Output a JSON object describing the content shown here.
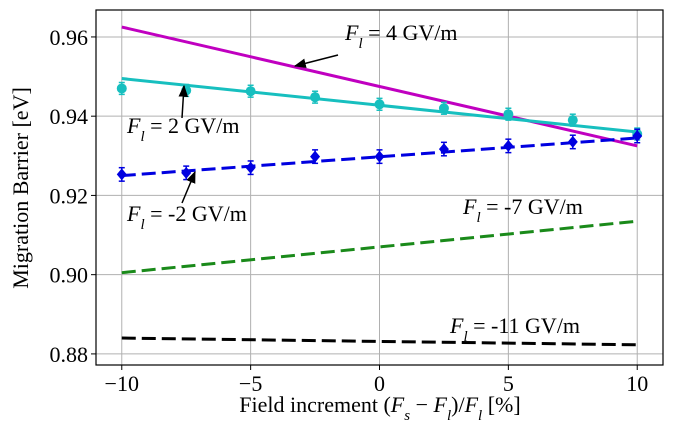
{
  "chart_data": {
    "type": "line",
    "xlabel": [
      {
        "t": "Field increment ("
      },
      {
        "t": "F",
        "i": true
      },
      {
        "t": "s",
        "i": true,
        "sub": true
      },
      {
        "t": " − "
      },
      {
        "t": "F",
        "i": true
      },
      {
        "t": "l",
        "i": true,
        "sub": true
      },
      {
        "t": ")/"
      },
      {
        "t": "F",
        "i": true
      },
      {
        "t": "l",
        "i": true,
        "sub": true
      },
      {
        "t": " [%]"
      }
    ],
    "ylabel": "Migration Barrier [eV]",
    "xlim": [
      -11,
      11
    ],
    "ylim": [
      0.8772,
      0.9668
    ],
    "xticks": [
      {
        "value": -10,
        "label": "−10"
      },
      {
        "value": -5,
        "label": "−5"
      },
      0,
      5,
      10
    ],
    "yticks": [
      0.88,
      {
        "value": 0.9,
        "label": "0.90"
      },
      0.92,
      0.94,
      0.96
    ],
    "grid": true,
    "series": [
      {
        "color": "#c000c0",
        "linestyle": "solid",
        "x": [
          -10,
          10
        ],
        "values": [
          0.9625,
          0.9325
        ]
      },
      {
        "color": "#17bfbf",
        "linestyle": "solid",
        "x": [
          -10,
          10
        ],
        "values": [
          0.9495,
          0.936
        ]
      },
      {
        "color": "#17bfbf",
        "linestyle": "none",
        "marker": "circle",
        "x": [
          -10,
          -7.5,
          -5,
          -2.5,
          0,
          2.5,
          5,
          7.5,
          10
        ],
        "values": [
          0.947,
          0.9465,
          0.9463,
          0.9448,
          0.943,
          0.942,
          0.9405,
          0.939,
          0.9355
        ],
        "errors": [
          0.0015,
          0.0015,
          0.0015,
          0.0015,
          0.0015,
          0.0015,
          0.0015,
          0.0015,
          0.0015
        ]
      },
      {
        "color": "#0000e0",
        "linestyle": "dashed",
        "x": [
          -10,
          10
        ],
        "values": [
          0.925,
          0.9345
        ]
      },
      {
        "color": "#0000e0",
        "linestyle": "none",
        "marker": "diamond",
        "x": [
          -10,
          -7.5,
          -5,
          -2.5,
          0,
          2.5,
          5,
          7.5,
          10
        ],
        "values": [
          0.9253,
          0.9257,
          0.927,
          0.9298,
          0.9298,
          0.9317,
          0.9325,
          0.9335,
          0.935
        ],
        "errors": [
          0.0017,
          0.0017,
          0.0017,
          0.0017,
          0.0017,
          0.0017,
          0.0017,
          0.0017,
          0.0017
        ]
      },
      {
        "color": "#1a8a1a",
        "linestyle": "dashed",
        "x": [
          -10,
          10
        ],
        "values": [
          0.9005,
          0.9135
        ]
      },
      {
        "color": "#000000",
        "linestyle": "dashed",
        "x": [
          -10,
          10
        ],
        "values": [
          0.884,
          0.8823
        ]
      }
    ],
    "annotations": [
      [
        {
          "t": "F",
          "i": true
        },
        {
          "t": "l",
          "i": true,
          "sub": true
        },
        {
          "t": " = 4 GV/m"
        }
      ],
      [
        {
          "t": "F",
          "i": true
        },
        {
          "t": "l",
          "i": true,
          "sub": true
        },
        {
          "t": " = 2 GV/m"
        }
      ],
      [
        {
          "t": "F",
          "i": true
        },
        {
          "t": "l",
          "i": true,
          "sub": true
        },
        {
          "t": " = -2 GV/m"
        }
      ],
      [
        {
          "t": "F",
          "i": true
        },
        {
          "t": "l",
          "i": true,
          "sub": true
        },
        {
          "t": " = -7 GV/m"
        }
      ],
      [
        {
          "t": "F",
          "i": true
        },
        {
          "t": "l",
          "i": true,
          "sub": true
        },
        {
          "t": " = -11 GV/m"
        }
      ]
    ]
  }
}
